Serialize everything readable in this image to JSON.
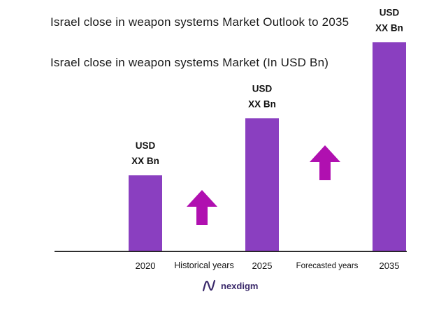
{
  "title": "Israel close in weapon systems Market Outlook to 2035",
  "subtitle": "Israel close in weapon systems Market (In USD Bn)",
  "colors": {
    "bar": "#8a3fc0",
    "arrow": "#b010b0",
    "axis": "#111111",
    "logo": "#3b2a6b"
  },
  "chart_data": {
    "type": "bar",
    "title": "Israel close in weapon systems Market Outlook to 2035",
    "subtitle": "Israel close in weapon systems Market (In USD Bn)",
    "categories": [
      "2020",
      "2025",
      "2035"
    ],
    "values": [
      1.0,
      1.75,
      2.75
    ],
    "value_labels": [
      [
        "USD",
        "XX Bn"
      ],
      [
        "USD",
        "XX Bn"
      ],
      [
        "USD",
        "XX Bn"
      ]
    ],
    "ylim": [
      0,
      2.9
    ],
    "period_labels": [
      "Historical years",
      "Forecasted years"
    ],
    "grid": false,
    "legend": "none"
  },
  "logo": {
    "text": "nexdigm",
    "icon": "nexdigm-logo-icon"
  }
}
